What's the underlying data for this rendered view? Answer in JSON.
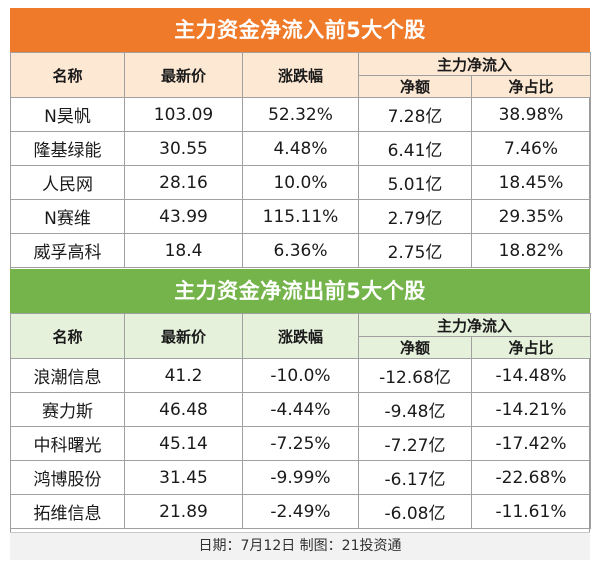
{
  "inflow": {
    "title": "主力资金净流入前5大个股",
    "headers": {
      "name": "名称",
      "price": "最新价",
      "change": "涨跌幅",
      "net_group": "主力净流入",
      "net_amount": "净额",
      "net_ratio": "净占比"
    },
    "rows": [
      {
        "name": "N昊帆",
        "price": "103.09",
        "change": "52.32%",
        "amount": "7.28亿",
        "ratio": "38.98%"
      },
      {
        "name": "隆基绿能",
        "price": "30.55",
        "change": "4.48%",
        "amount": "6.41亿",
        "ratio": "7.46%"
      },
      {
        "name": "人民网",
        "price": "28.16",
        "change": "10.0%",
        "amount": "5.01亿",
        "ratio": "18.45%"
      },
      {
        "name": "N赛维",
        "price": "43.99",
        "change": "115.11%",
        "amount": "2.79亿",
        "ratio": "29.35%"
      },
      {
        "name": "威孚高科",
        "price": "18.4",
        "change": "6.36%",
        "amount": "2.75亿",
        "ratio": "18.82%"
      }
    ]
  },
  "outflow": {
    "title": "主力资金净流出前5大个股",
    "headers": {
      "name": "名称",
      "price": "最新价",
      "change": "涨跌幅",
      "net_group": "主力净流入",
      "net_amount": "净额",
      "net_ratio": "净占比"
    },
    "rows": [
      {
        "name": "浪潮信息",
        "price": "41.2",
        "change": "-10.0%",
        "amount": "-12.68亿",
        "ratio": "-14.48%"
      },
      {
        "name": "赛力斯",
        "price": "46.48",
        "change": "-4.44%",
        "amount": "-9.48亿",
        "ratio": "-14.21%"
      },
      {
        "name": "中科曙光",
        "price": "45.14",
        "change": "-7.25%",
        "amount": "-7.27亿",
        "ratio": "-17.42%"
      },
      {
        "name": "鸿博股份",
        "price": "31.45",
        "change": "-9.99%",
        "amount": "-6.17亿",
        "ratio": "-22.68%"
      },
      {
        "name": "拓维信息",
        "price": "21.89",
        "change": "-2.49%",
        "amount": "-6.08亿",
        "ratio": "-11.61%"
      }
    ]
  },
  "footer": {
    "text": "日期：7月12日 制图：21投资通"
  },
  "colors": {
    "inflow_banner": "#ef7a2a",
    "outflow_banner": "#74b44a",
    "inflow_header": "#fde8d4",
    "outflow_header": "#e6f1dc"
  }
}
